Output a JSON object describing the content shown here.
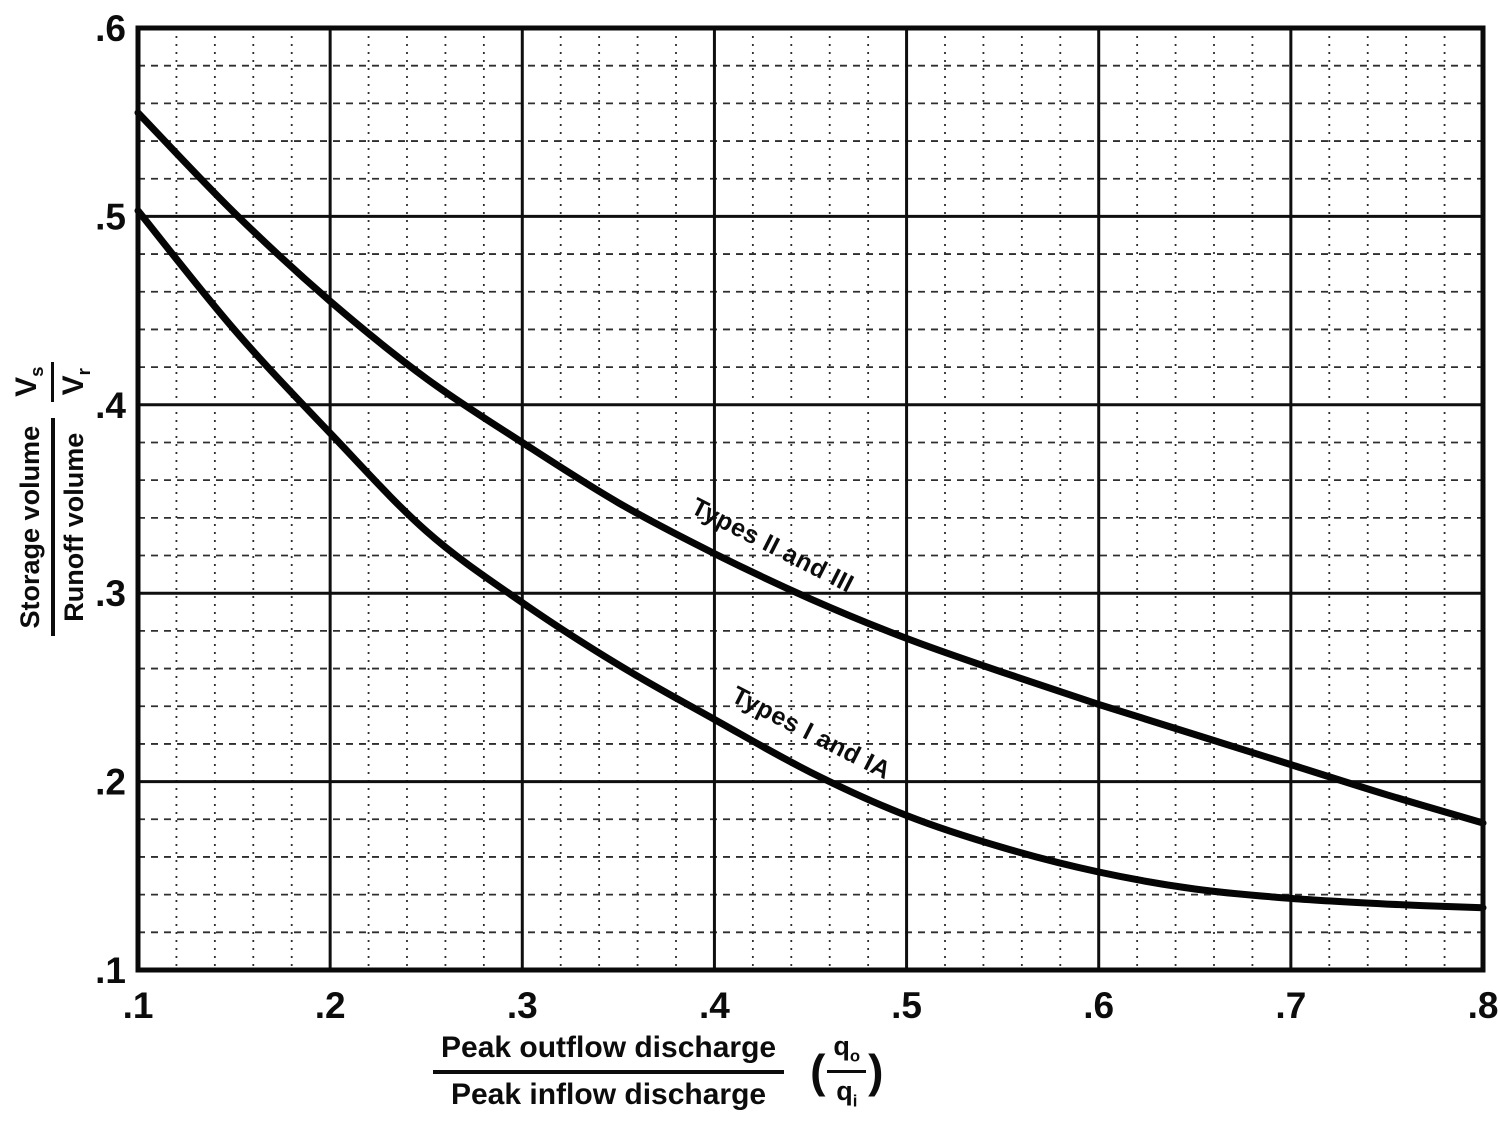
{
  "chart_data": {
    "type": "line",
    "title": "",
    "background": "#ffffff",
    "ink_color": "#0c0c0c",
    "grid": {
      "major": true,
      "minor": true,
      "major_color": "#0f0f0f",
      "minor_color": "#2f2f2f"
    },
    "legend": "labels-on-curves",
    "x_axis": {
      "label_numerator": "Peak outflow discharge",
      "label_denominator": "Peak inflow discharge",
      "symbol_open": "(",
      "symbol_close": ")",
      "symbol_num_base": "q",
      "symbol_num_sub": "o",
      "symbol_den_base": "q",
      "symbol_den_sub": "i",
      "range": [
        0.1,
        0.8
      ],
      "tick_values": [
        0.1,
        0.2,
        0.3,
        0.4,
        0.5,
        0.6,
        0.7,
        0.8
      ],
      "tick_labels": [
        ".1",
        ".2",
        ".3",
        ".4",
        ".5",
        ".6",
        ".7",
        ".8"
      ],
      "minor_step": 0.02
    },
    "y_axis": {
      "label_numerator": "Storage volume",
      "label_denominator": "Runoff volume",
      "symbol_num_base": "V",
      "symbol_num_sub": "s",
      "symbol_den_base": "V",
      "symbol_den_sub": "r",
      "range": [
        0.1,
        0.6
      ],
      "tick_values": [
        0.6,
        0.5,
        0.4,
        0.3,
        0.2,
        0.1
      ],
      "tick_labels": [
        ".6",
        ".5",
        ".4",
        ".3",
        ".2",
        ".1"
      ],
      "minor_step": 0.02
    },
    "series": [
      {
        "name": "Types II and III",
        "x": [
          0.1,
          0.15,
          0.2,
          0.25,
          0.3,
          0.35,
          0.4,
          0.45,
          0.5,
          0.55,
          0.6,
          0.65,
          0.7,
          0.75,
          0.8
        ],
        "y": [
          0.555,
          0.502,
          0.455,
          0.414,
          0.38,
          0.348,
          0.321,
          0.297,
          0.276,
          0.258,
          0.241,
          0.225,
          0.209,
          0.193,
          0.178
        ],
        "label": {
          "text": "Types II and III",
          "x": 0.387,
          "y": 0.343,
          "angle": 27
        }
      },
      {
        "name": "Types I and IA",
        "x": [
          0.1,
          0.15,
          0.2,
          0.25,
          0.3,
          0.35,
          0.4,
          0.45,
          0.5,
          0.55,
          0.6,
          0.65,
          0.7,
          0.75,
          0.8
        ],
        "y": [
          0.503,
          0.44,
          0.385,
          0.333,
          0.295,
          0.262,
          0.233,
          0.205,
          0.182,
          0.165,
          0.152,
          0.143,
          0.138,
          0.135,
          0.133
        ],
        "label": {
          "text": "Types I and IA",
          "x": 0.408,
          "y": 0.243,
          "angle": 27
        }
      }
    ]
  }
}
